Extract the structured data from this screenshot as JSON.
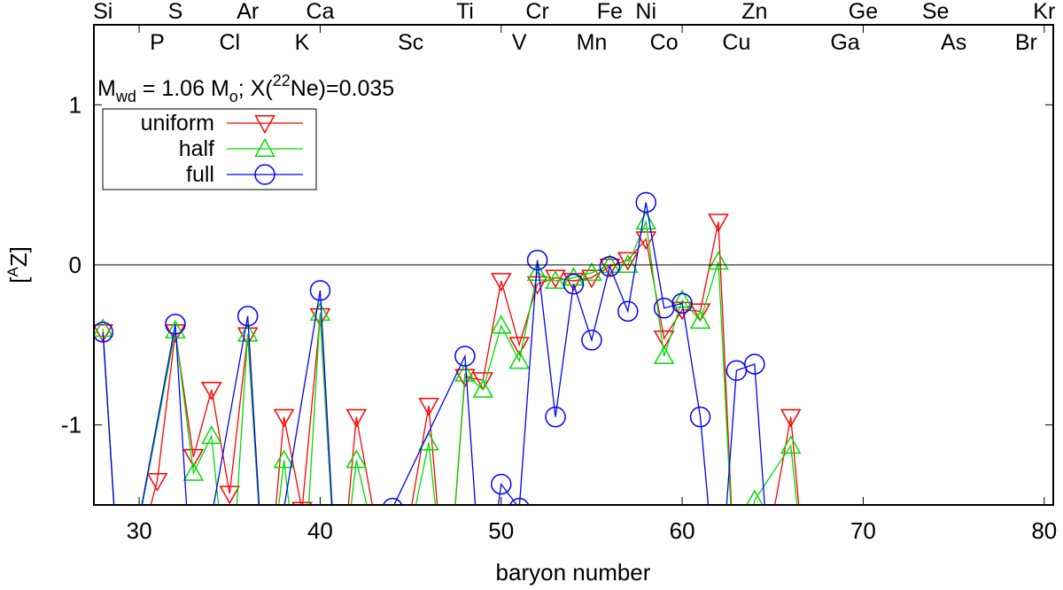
{
  "chart_data": {
    "type": "line",
    "xlabel": "baryon number",
    "ylabel": "[AZ]",
    "ylabel_parts": {
      "open": "[",
      "sup": "A",
      "main": "Z",
      "close": "]"
    },
    "xlim": [
      27.5,
      80.5
    ],
    "ylim": [
      -1.5,
      1.5
    ],
    "x_ticks": [
      30,
      40,
      50,
      60,
      70,
      80
    ],
    "y_ticks": [
      -1,
      0,
      1
    ],
    "x_tick_labels": [
      "30",
      "40",
      "50",
      "60",
      "70",
      "80"
    ],
    "y_tick_labels": [
      "-1",
      "0",
      "1"
    ],
    "zero_line": true,
    "grid": false,
    "legend_position": "top-left",
    "annotation": {
      "m": "M",
      "m_sub": "wd",
      "mass": " = 1.06 M",
      "mass_sub": "o",
      "x_open": "; X(",
      "iso_sup": "22",
      "iso": "Ne)=0.035"
    },
    "elements_top": [
      {
        "symbol": "Si",
        "A": 28
      },
      {
        "symbol": "S",
        "A": 32
      },
      {
        "symbol": "Ar",
        "A": 36
      },
      {
        "symbol": "Ca",
        "A": 40
      },
      {
        "symbol": "Ti",
        "A": 48
      },
      {
        "symbol": "Cr",
        "A": 52
      },
      {
        "symbol": "Fe",
        "A": 56
      },
      {
        "symbol": "Ni",
        "A": 58
      },
      {
        "symbol": "Zn",
        "A": 64
      },
      {
        "symbol": "Ge",
        "A": 70
      },
      {
        "symbol": "Se",
        "A": 74
      },
      {
        "symbol": "Kr",
        "A": 80
      }
    ],
    "elements_bottom": [
      {
        "symbol": "P",
        "A": 31
      },
      {
        "symbol": "Cl",
        "A": 35
      },
      {
        "symbol": "K",
        "A": 39
      },
      {
        "symbol": "Sc",
        "A": 45
      },
      {
        "symbol": "V",
        "A": 51
      },
      {
        "symbol": "Mn",
        "A": 55
      },
      {
        "symbol": "Co",
        "A": 59
      },
      {
        "symbol": "Cu",
        "A": 63
      },
      {
        "symbol": "Ga",
        "A": 69
      },
      {
        "symbol": "As",
        "A": 75
      },
      {
        "symbol": "Br",
        "A": 79
      }
    ],
    "series": [
      {
        "name": "uniform",
        "color": "#ff0000",
        "marker": "triangle-down",
        "points": [
          [
            28,
            -0.42
          ],
          [
            29,
            -2.2
          ],
          [
            31,
            -1.35
          ],
          [
            32,
            -0.42
          ],
          [
            33,
            -1.2
          ],
          [
            34,
            -0.78
          ],
          [
            35,
            -1.43
          ],
          [
            36,
            -0.44
          ],
          [
            37,
            -2.2
          ],
          [
            38,
            -0.95
          ],
          [
            39,
            -1.53
          ],
          [
            40,
            -0.32
          ],
          [
            41,
            -2.2
          ],
          [
            42,
            -0.95
          ],
          [
            44,
            -2.2
          ],
          [
            46,
            -0.88
          ],
          [
            47,
            -2.2
          ],
          [
            48,
            -0.7
          ],
          [
            49,
            -0.72
          ],
          [
            50,
            -0.1
          ],
          [
            51,
            -0.5
          ],
          [
            52,
            -0.12
          ],
          [
            53,
            -0.08
          ],
          [
            54,
            -0.1
          ],
          [
            55,
            -0.08
          ],
          [
            56,
            -0.01
          ],
          [
            57,
            0.03
          ],
          [
            58,
            0.16
          ],
          [
            59,
            -0.46
          ],
          [
            60,
            -0.28
          ],
          [
            61,
            -0.29
          ],
          [
            62,
            0.27
          ],
          [
            63,
            -2.2
          ],
          [
            64,
            -2.2
          ],
          [
            66,
            -0.95
          ],
          [
            67,
            -2.2
          ]
        ]
      },
      {
        "name": "half",
        "color": "#00dd00",
        "marker": "triangle-up",
        "points": [
          [
            28,
            -0.4
          ],
          [
            29,
            -2.2
          ],
          [
            32,
            -0.41
          ],
          [
            33,
            -1.3
          ],
          [
            34,
            -1.07
          ],
          [
            35,
            -2.2
          ],
          [
            36,
            -0.43
          ],
          [
            37,
            -2.2
          ],
          [
            38,
            -1.22
          ],
          [
            39,
            -2.2
          ],
          [
            40,
            -0.3
          ],
          [
            41,
            -2.2
          ],
          [
            42,
            -1.22
          ],
          [
            44,
            -2.2
          ],
          [
            46,
            -1.11
          ],
          [
            47,
            -2.2
          ],
          [
            48,
            -0.68
          ],
          [
            49,
            -0.78
          ],
          [
            50,
            -0.38
          ],
          [
            51,
            -0.6
          ],
          [
            52,
            -0.05
          ],
          [
            53,
            -0.1
          ],
          [
            54,
            -0.08
          ],
          [
            55,
            -0.05
          ],
          [
            56,
            0.0
          ],
          [
            57,
            0.0
          ],
          [
            58,
            0.27
          ],
          [
            59,
            -0.57
          ],
          [
            60,
            -0.22
          ],
          [
            61,
            -0.35
          ],
          [
            62,
            0.02
          ],
          [
            63,
            -2.2
          ],
          [
            64,
            -1.47
          ],
          [
            66,
            -1.13
          ],
          [
            67,
            -2.2
          ]
        ]
      },
      {
        "name": "full",
        "color": "#0000ff",
        "marker": "circle",
        "points": [
          [
            28,
            -0.42
          ],
          [
            29,
            -2.2
          ],
          [
            32,
            -0.37
          ],
          [
            33,
            -2.2
          ],
          [
            36,
            -0.32
          ],
          [
            37,
            -2.2
          ],
          [
            40,
            -0.16
          ],
          [
            41,
            -2.2
          ],
          [
            44,
            -1.52
          ],
          [
            48,
            -0.57
          ],
          [
            49,
            -2.2
          ],
          [
            50,
            -1.37
          ],
          [
            51,
            -1.52
          ],
          [
            52,
            0.03
          ],
          [
            53,
            -0.95
          ],
          [
            54,
            -0.12
          ],
          [
            55,
            -0.47
          ],
          [
            56,
            -0.01
          ],
          [
            57,
            -0.29
          ],
          [
            58,
            0.39
          ],
          [
            59,
            -0.27
          ],
          [
            60,
            -0.24
          ],
          [
            61,
            -0.95
          ],
          [
            62,
            -2.2
          ],
          [
            63,
            -0.66
          ],
          [
            64,
            -0.62
          ],
          [
            65,
            -2.2
          ]
        ]
      }
    ]
  }
}
